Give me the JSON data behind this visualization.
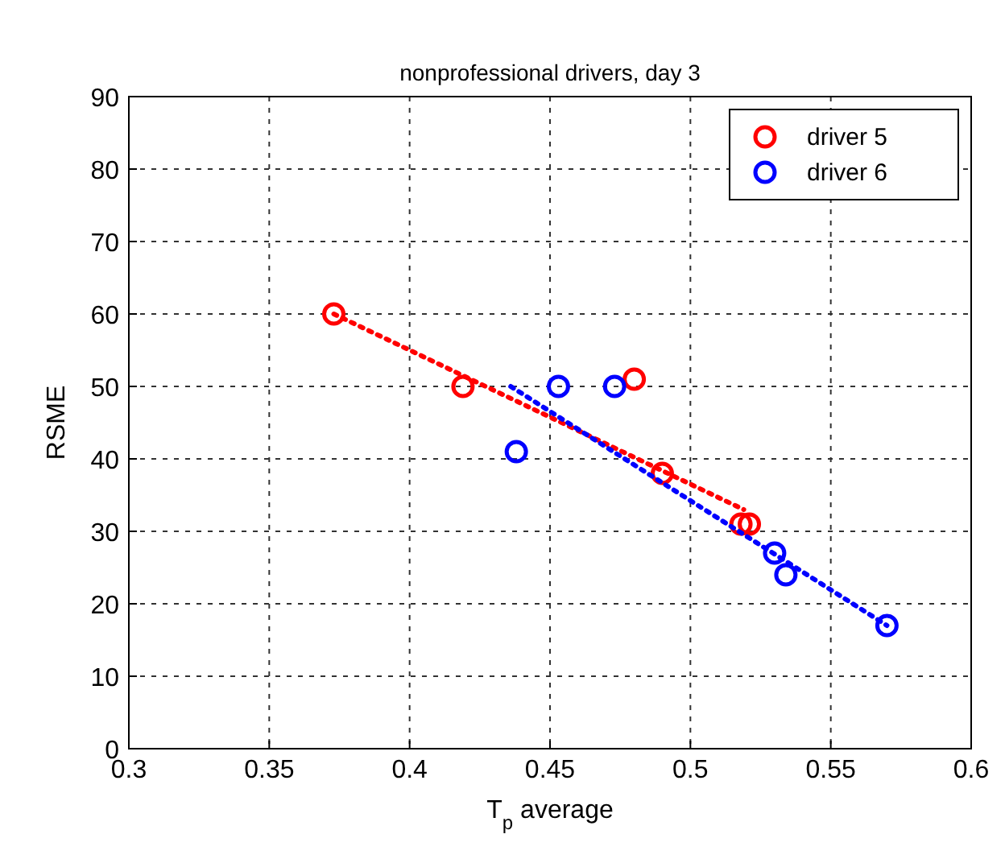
{
  "chart_data": {
    "type": "scatter",
    "title": "nonprofessional drivers, day 3",
    "xlabel": "T$_{p}$ average",
    "ylabel": "RSME",
    "xlim": [
      0.3,
      0.6
    ],
    "xticks": [
      0.3,
      0.35,
      0.4,
      0.45,
      0.5,
      0.55,
      0.6
    ],
    "ylim": [
      0,
      90
    ],
    "yticks": [
      0,
      10,
      20,
      30,
      40,
      50,
      60,
      70,
      80,
      90
    ],
    "grid": true,
    "legend": "top right",
    "marker": "circle",
    "series": [
      {
        "name": "driver 5",
        "color": "#ff0000",
        "x": [
          0.373,
          0.419,
          0.48,
          0.49,
          0.518,
          0.521
        ],
        "values": [
          60,
          50,
          51,
          38,
          31,
          31
        ]
      },
      {
        "name": "driver 6",
        "color": "#0000ff",
        "x": [
          0.438,
          0.453,
          0.473,
          0.53,
          0.534,
          0.57
        ],
        "values": [
          41,
          50,
          50,
          27,
          24,
          17
        ]
      },
      {
        "type": "line",
        "color": "#ff0000",
        "line_style": "dotted",
        "marker": "none",
        "x": [
          0.373,
          0.519
        ],
        "values": [
          60,
          33
        ]
      },
      {
        "type": "line",
        "color": "#0000ff",
        "line_style": "dotted",
        "marker": "none",
        "x": [
          0.436,
          0.57
        ],
        "values": [
          50,
          17
        ]
      }
    ]
  }
}
